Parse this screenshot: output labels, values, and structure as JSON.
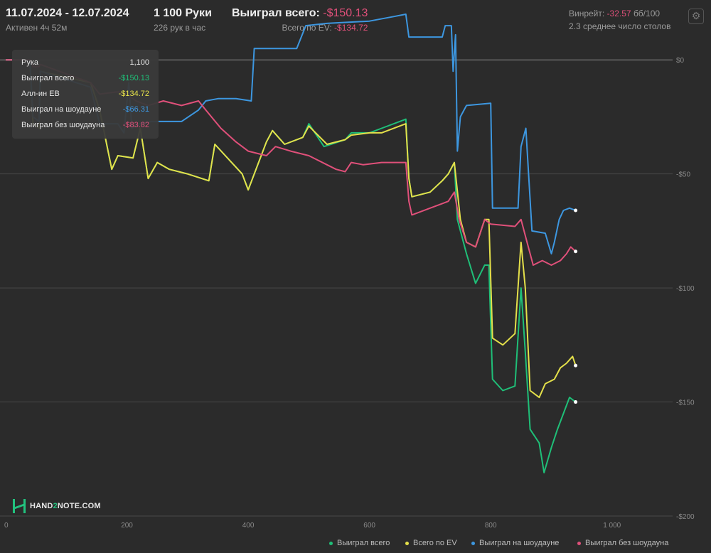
{
  "header": {
    "date_range": "11.07.2024 - 12.07.2024",
    "active": "Активен 4ч 52м",
    "hands": "1 100 Руки",
    "hands_per_hour": "226 рук в час",
    "won_total_label": "Выиграл всего:",
    "won_total_value": "-$150.13",
    "ev_total_label": "Всего по EV:",
    "ev_total_value": "-$134.72",
    "winrate_label": "Винрейт:",
    "winrate_value": "-32.57",
    "winrate_unit": "бб/100",
    "avg_tables": "2.3 среднее число столов"
  },
  "tooltip": {
    "rows": [
      {
        "label": "Рука",
        "value": "1,100",
        "color": "#e6e6e6"
      },
      {
        "label": "Выиграл всего",
        "value": "-$150.13",
        "color": "#1fbf78"
      },
      {
        "label": "Алл-ин EB",
        "value": "-$134.72",
        "color": "#e4e04a"
      },
      {
        "label": "Выиграл на шоудауне",
        "value": "-$66.31",
        "color": "#3d97e0"
      },
      {
        "label": "Выиграл без шоудауна",
        "value": "-$83.82",
        "color": "#e0507a"
      }
    ]
  },
  "logo": {
    "part1": "HAND",
    "part2": "2",
    "part3": "NOTE.COM"
  },
  "chart_data": {
    "type": "line",
    "x_ticks": [
      "0",
      "200",
      "400",
      "600",
      "800",
      "1 000"
    ],
    "y_ticks": [
      "$0",
      "-$50",
      "-$100",
      "-$150",
      "-$200"
    ],
    "xlim": [
      0,
      1100
    ],
    "ylim": [
      -200,
      25
    ],
    "grid": true,
    "legend_position": "bottom-right",
    "series": [
      {
        "name": "Выиграл всего",
        "color": "#1fbf78",
        "points": [
          [
            0,
            0
          ],
          [
            40,
            0
          ],
          [
            45,
            -28
          ],
          [
            55,
            -30
          ],
          [
            57,
            -5
          ],
          [
            140,
            -10
          ],
          [
            155,
            -22
          ],
          [
            175,
            -48
          ],
          [
            185,
            -42
          ],
          [
            210,
            -43
          ],
          [
            222,
            -30
          ],
          [
            228,
            -40
          ],
          [
            235,
            -52
          ],
          [
            250,
            -45
          ],
          [
            270,
            -48
          ],
          [
            300,
            -50
          ],
          [
            335,
            -53
          ],
          [
            345,
            -37
          ],
          [
            390,
            -50
          ],
          [
            400,
            -57
          ],
          [
            430,
            -36
          ],
          [
            440,
            -31
          ],
          [
            460,
            -37
          ],
          [
            490,
            -34
          ],
          [
            500,
            -28
          ],
          [
            525,
            -38
          ],
          [
            560,
            -35
          ],
          [
            570,
            -32
          ],
          [
            600,
            -32
          ],
          [
            620,
            -30
          ],
          [
            660,
            -26
          ],
          [
            665,
            -52
          ],
          [
            670,
            -60
          ],
          [
            700,
            -58
          ],
          [
            720,
            -53
          ],
          [
            730,
            -50
          ],
          [
            740,
            -45
          ],
          [
            745,
            -70
          ],
          [
            760,
            -85
          ],
          [
            775,
            -98
          ],
          [
            790,
            -90
          ],
          [
            797,
            -90
          ],
          [
            803,
            -140
          ],
          [
            820,
            -145
          ],
          [
            840,
            -143
          ],
          [
            850,
            -100
          ],
          [
            857,
            -128
          ],
          [
            865,
            -162
          ],
          [
            880,
            -168
          ],
          [
            888,
            -181
          ],
          [
            900,
            -170
          ],
          [
            910,
            -162
          ],
          [
            920,
            -155
          ],
          [
            930,
            -148
          ],
          [
            940,
            -150
          ]
        ]
      },
      {
        "name": "Всего по EV",
        "color": "#e4e04a",
        "points": [
          [
            0,
            0
          ],
          [
            40,
            0
          ],
          [
            45,
            -28
          ],
          [
            55,
            -30
          ],
          [
            57,
            -5
          ],
          [
            140,
            -10
          ],
          [
            155,
            -22
          ],
          [
            175,
            -48
          ],
          [
            185,
            -42
          ],
          [
            210,
            -43
          ],
          [
            222,
            -30
          ],
          [
            228,
            -40
          ],
          [
            235,
            -52
          ],
          [
            250,
            -45
          ],
          [
            270,
            -48
          ],
          [
            300,
            -50
          ],
          [
            335,
            -53
          ],
          [
            345,
            -37
          ],
          [
            390,
            -50
          ],
          [
            400,
            -57
          ],
          [
            430,
            -36
          ],
          [
            440,
            -31
          ],
          [
            460,
            -37
          ],
          [
            490,
            -34
          ],
          [
            500,
            -29
          ],
          [
            530,
            -37
          ],
          [
            560,
            -35
          ],
          [
            570,
            -33
          ],
          [
            600,
            -32
          ],
          [
            620,
            -32
          ],
          [
            660,
            -28
          ],
          [
            665,
            -52
          ],
          [
            670,
            -60
          ],
          [
            700,
            -58
          ],
          [
            720,
            -53
          ],
          [
            730,
            -50
          ],
          [
            740,
            -45
          ],
          [
            750,
            -70
          ],
          [
            760,
            -80
          ],
          [
            775,
            -82
          ],
          [
            790,
            -70
          ],
          [
            797,
            -70
          ],
          [
            803,
            -122
          ],
          [
            820,
            -125
          ],
          [
            840,
            -120
          ],
          [
            850,
            -80
          ],
          [
            857,
            -100
          ],
          [
            865,
            -145
          ],
          [
            880,
            -148
          ],
          [
            890,
            -142
          ],
          [
            905,
            -140
          ],
          [
            915,
            -135
          ],
          [
            925,
            -133
          ],
          [
            935,
            -130
          ],
          [
            940,
            -134
          ]
        ]
      },
      {
        "name": "Выиграл на шоудауне",
        "color": "#3d97e0",
        "points": [
          [
            0,
            0
          ],
          [
            40,
            0
          ],
          [
            45,
            -25
          ],
          [
            55,
            -27
          ],
          [
            57,
            -5
          ],
          [
            140,
            -12
          ],
          [
            155,
            -28
          ],
          [
            185,
            -28
          ],
          [
            195,
            -32
          ],
          [
            203,
            -10
          ],
          [
            208,
            -30
          ],
          [
            220,
            -28
          ],
          [
            240,
            -27
          ],
          [
            290,
            -27
          ],
          [
            318,
            -22
          ],
          [
            330,
            -18
          ],
          [
            350,
            -17
          ],
          [
            380,
            -17
          ],
          [
            405,
            -18
          ],
          [
            410,
            5
          ],
          [
            480,
            5
          ],
          [
            495,
            15
          ],
          [
            530,
            16
          ],
          [
            600,
            17
          ],
          [
            640,
            19
          ],
          [
            660,
            20
          ],
          [
            665,
            10
          ],
          [
            675,
            10
          ],
          [
            720,
            10
          ],
          [
            725,
            15
          ],
          [
            735,
            15
          ],
          [
            738,
            -5
          ],
          [
            742,
            11
          ],
          [
            745,
            -40
          ],
          [
            750,
            -25
          ],
          [
            760,
            -20
          ],
          [
            800,
            -19
          ],
          [
            803,
            -65
          ],
          [
            825,
            -65
          ],
          [
            845,
            -65
          ],
          [
            850,
            -38
          ],
          [
            858,
            -30
          ],
          [
            868,
            -75
          ],
          [
            890,
            -76
          ],
          [
            900,
            -85
          ],
          [
            905,
            -80
          ],
          [
            913,
            -70
          ],
          [
            920,
            -66
          ],
          [
            930,
            -65
          ],
          [
            940,
            -66
          ]
        ]
      },
      {
        "name": "Выиграл без шоудауна",
        "color": "#e0507a",
        "points": [
          [
            0,
            0
          ],
          [
            40,
            0
          ],
          [
            45,
            -3
          ],
          [
            55,
            -3
          ],
          [
            57,
            -2
          ],
          [
            140,
            -10
          ],
          [
            155,
            -15
          ],
          [
            185,
            -14
          ],
          [
            200,
            -15
          ],
          [
            215,
            -18
          ],
          [
            235,
            -20
          ],
          [
            260,
            -18
          ],
          [
            290,
            -20
          ],
          [
            318,
            -18
          ],
          [
            330,
            -22
          ],
          [
            355,
            -30
          ],
          [
            380,
            -36
          ],
          [
            400,
            -40
          ],
          [
            430,
            -42
          ],
          [
            445,
            -38
          ],
          [
            470,
            -40
          ],
          [
            500,
            -42
          ],
          [
            530,
            -46
          ],
          [
            545,
            -48
          ],
          [
            560,
            -49
          ],
          [
            570,
            -45
          ],
          [
            590,
            -46
          ],
          [
            620,
            -45
          ],
          [
            660,
            -45
          ],
          [
            665,
            -62
          ],
          [
            670,
            -68
          ],
          [
            700,
            -65
          ],
          [
            720,
            -63
          ],
          [
            730,
            -62
          ],
          [
            740,
            -58
          ],
          [
            748,
            -70
          ],
          [
            760,
            -80
          ],
          [
            775,
            -82
          ],
          [
            790,
            -70
          ],
          [
            800,
            -72
          ],
          [
            840,
            -73
          ],
          [
            850,
            -70
          ],
          [
            860,
            -80
          ],
          [
            870,
            -90
          ],
          [
            885,
            -88
          ],
          [
            900,
            -90
          ],
          [
            915,
            -88
          ],
          [
            925,
            -85
          ],
          [
            932,
            -82
          ],
          [
            940,
            -84
          ]
        ]
      }
    ]
  }
}
